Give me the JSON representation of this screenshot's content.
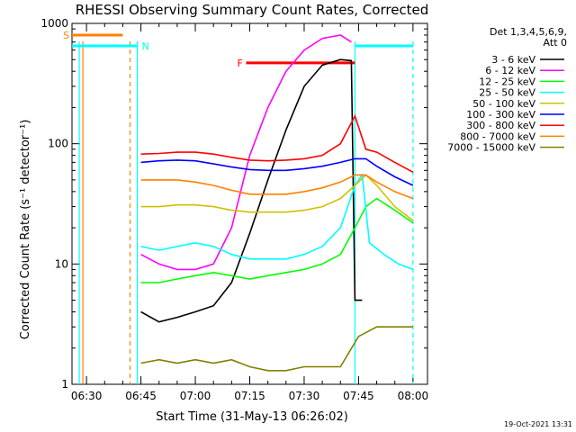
{
  "chart_data": {
    "type": "line",
    "title": "RHESSI Observing Summary Count Rates, Corrected",
    "xlabel": "Start Time (31-May-13 06:26:02)",
    "ylabel": "Corrected Count Rate (s⁻¹ detector⁻¹)",
    "y_scale": "log",
    "ylim": [
      1,
      1000
    ],
    "xlim": [
      "06:26",
      "08:04"
    ],
    "x_ticks": [
      "06:30",
      "06:45",
      "07:00",
      "07:15",
      "07:30",
      "07:45",
      "08:00"
    ],
    "y_ticks": [
      "1",
      "10",
      "100",
      "1000"
    ],
    "detector_info": [
      "Det 1,3,4,5,6,9,",
      "Att 0"
    ],
    "stamp": "19-Oct-2021 13:31",
    "markers": [
      {
        "label": "S",
        "color": "#ff8000",
        "start": "06:26",
        "end": "06:40"
      },
      {
        "label": "N",
        "color": "#00ffff",
        "start": "06:26",
        "end": "06:44"
      },
      {
        "label": "F",
        "color": "#ff0000",
        "start": "07:14",
        "end": "07:44"
      }
    ],
    "series": [
      {
        "name": "3 - 6 keV",
        "color": "#000000",
        "x": [
          "06:45",
          "06:50",
          "06:55",
          "07:00",
          "07:05",
          "07:10",
          "07:15",
          "07:20",
          "07:25",
          "07:30",
          "07:35",
          "07:40",
          "07:43",
          "07:44",
          "07:46"
        ],
        "y": [
          4,
          3.3,
          3.6,
          4,
          4.5,
          7,
          18,
          50,
          130,
          300,
          450,
          500,
          490,
          5,
          5
        ]
      },
      {
        "name": "6 - 12 keV",
        "color": "#ff00ff",
        "x": [
          "06:45",
          "06:50",
          "06:55",
          "07:00",
          "07:05",
          "07:10",
          "07:15",
          "07:20",
          "07:25",
          "07:30",
          "07:35",
          "07:40",
          "07:43"
        ],
        "y": [
          12,
          10,
          9,
          9,
          10,
          20,
          80,
          200,
          400,
          600,
          750,
          800,
          700
        ]
      },
      {
        "name": "12 - 25 keV",
        "color": "#00ff00",
        "x": [
          "06:45",
          "06:50",
          "06:55",
          "07:00",
          "07:05",
          "07:10",
          "07:15",
          "07:20",
          "07:25",
          "07:30",
          "07:35",
          "07:40",
          "07:44",
          "07:47",
          "07:50",
          "07:55",
          "08:00"
        ],
        "y": [
          7,
          7,
          7.5,
          8,
          8.5,
          8,
          7.5,
          8,
          8.5,
          9,
          10,
          12,
          20,
          30,
          35,
          28,
          22
        ]
      },
      {
        "name": "25 - 50 keV",
        "color": "#00ffff",
        "x": [
          "06:45",
          "06:50",
          "06:55",
          "07:00",
          "07:05",
          "07:10",
          "07:15",
          "07:20",
          "07:25",
          "07:30",
          "07:35",
          "07:40",
          "07:44",
          "07:46",
          "07:48",
          "07:52",
          "07:56",
          "08:00"
        ],
        "y": [
          14,
          13,
          14,
          15,
          14,
          12,
          11,
          11,
          11,
          12,
          14,
          20,
          45,
          55,
          15,
          12,
          10,
          9
        ]
      },
      {
        "name": "50 - 100 keV",
        "color": "#d0c000",
        "x": [
          "06:45",
          "06:50",
          "06:55",
          "07:00",
          "07:05",
          "07:10",
          "07:15",
          "07:20",
          "07:25",
          "07:30",
          "07:35",
          "07:40",
          "07:44",
          "07:47",
          "07:50",
          "07:55",
          "08:00"
        ],
        "y": [
          30,
          30,
          31,
          31,
          30,
          28,
          27,
          27,
          27,
          28,
          30,
          35,
          45,
          55,
          45,
          30,
          23
        ]
      },
      {
        "name": "100 - 300 keV",
        "color": "#0000ff",
        "x": [
          "06:45",
          "06:50",
          "06:55",
          "07:00",
          "07:05",
          "07:10",
          "07:15",
          "07:20",
          "07:25",
          "07:30",
          "07:35",
          "07:40",
          "07:44",
          "07:47",
          "07:50",
          "07:55",
          "08:00"
        ],
        "y": [
          70,
          72,
          73,
          72,
          68,
          64,
          61,
          60,
          60,
          62,
          65,
          70,
          75,
          75,
          65,
          53,
          45
        ]
      },
      {
        "name": "300 - 800 keV",
        "color": "#ff0000",
        "x": [
          "06:45",
          "06:50",
          "06:55",
          "07:00",
          "07:05",
          "07:10",
          "07:15",
          "07:20",
          "07:25",
          "07:30",
          "07:35",
          "07:40",
          "07:44",
          "07:47",
          "07:50",
          "07:55",
          "08:00"
        ],
        "y": [
          82,
          83,
          85,
          85,
          82,
          77,
          73,
          72,
          73,
          75,
          80,
          100,
          170,
          90,
          85,
          70,
          58
        ]
      },
      {
        "name": "800 - 7000 keV",
        "color": "#ff8000",
        "x": [
          "06:45",
          "06:50",
          "06:55",
          "07:00",
          "07:05",
          "07:10",
          "07:15",
          "07:20",
          "07:25",
          "07:30",
          "07:35",
          "07:40",
          "07:44",
          "07:47",
          "07:50",
          "07:55",
          "08:00"
        ],
        "y": [
          50,
          50,
          50,
          48,
          45,
          41,
          38,
          38,
          38,
          40,
          43,
          48,
          55,
          55,
          48,
          40,
          35
        ]
      },
      {
        "name": "7000 - 15000 keV",
        "color": "#808000",
        "x": [
          "06:45",
          "06:50",
          "06:55",
          "07:00",
          "07:05",
          "07:10",
          "07:15",
          "07:20",
          "07:25",
          "07:30",
          "07:35",
          "07:40",
          "07:45",
          "07:50",
          "07:55",
          "08:00"
        ],
        "y": [
          1.5,
          1.6,
          1.5,
          1.6,
          1.5,
          1.6,
          1.4,
          1.3,
          1.3,
          1.4,
          1.4,
          1.4,
          2.5,
          3,
          3,
          3
        ]
      }
    ]
  }
}
